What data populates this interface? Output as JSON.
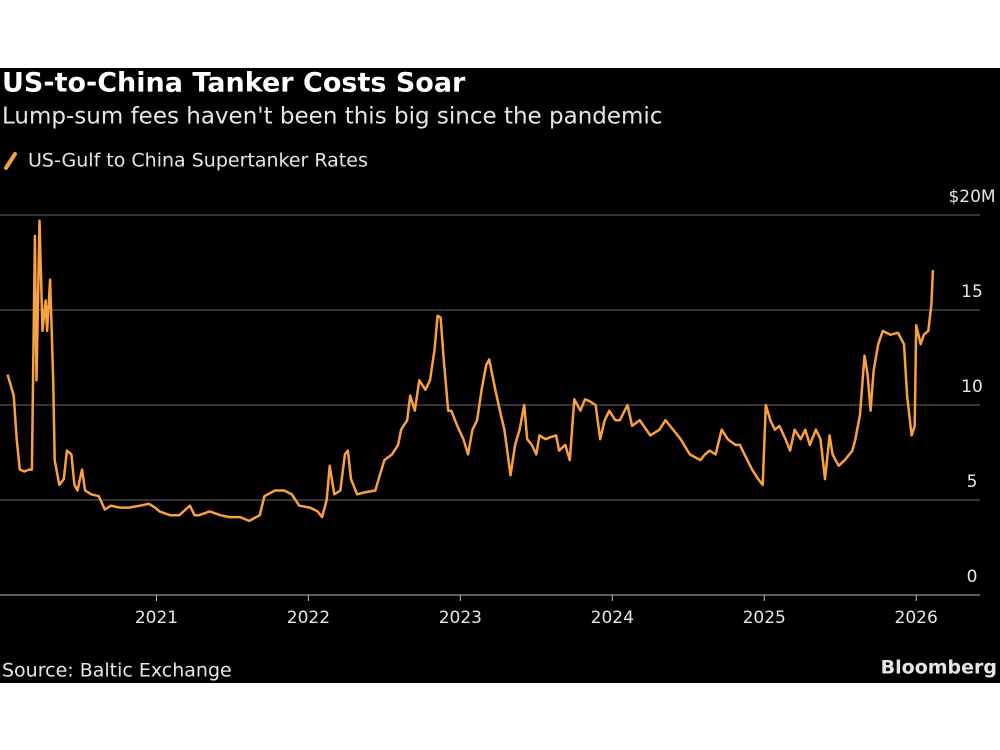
{
  "chart_data": {
    "type": "line",
    "title": "US-to-China Tanker Costs Soar",
    "subtitle": "Lump-sum fees haven't been this big since the pandemic",
    "source": "Source: Baltic Exchange",
    "brand": "Bloomberg",
    "x": [
      2020.02,
      2020.06,
      2020.08,
      2020.1,
      2020.13,
      2020.16,
      2020.18,
      2020.2,
      2020.21,
      2020.23,
      2020.25,
      2020.27,
      2020.28,
      2020.3,
      2020.32,
      2020.33,
      2020.36,
      2020.39,
      2020.41,
      2020.44,
      2020.46,
      2020.48,
      2020.51,
      2020.53,
      2020.57,
      2020.62,
      2020.66,
      2020.7,
      2020.76,
      2020.82,
      2020.89,
      2020.95,
      2020.99,
      2021.02,
      2021.09,
      2021.15,
      2021.22,
      2021.25,
      2021.28,
      2021.35,
      2021.42,
      2021.48,
      2021.55,
      2021.61,
      2021.68,
      2021.71,
      2021.78,
      2021.84,
      2021.89,
      2021.94,
      2022.01,
      2022.06,
      2022.09,
      2022.12,
      2022.14,
      2022.17,
      2022.21,
      2022.24,
      2022.26,
      2022.28,
      2022.32,
      2022.37,
      2022.44,
      2022.47,
      2022.5,
      2022.55,
      2022.59,
      2022.61,
      2022.65,
      2022.67,
      2022.7,
      2022.73,
      2022.77,
      2022.8,
      2022.83,
      2022.85,
      2022.87,
      2022.89,
      2022.92,
      2022.94,
      2022.98,
      2023.02,
      2023.05,
      2023.08,
      2023.11,
      2023.14,
      2023.17,
      2023.19,
      2023.23,
      2023.26,
      2023.29,
      2023.33,
      2023.36,
      2023.39,
      2023.42,
      2023.44,
      2023.47,
      2023.5,
      2023.52,
      2023.56,
      2023.59,
      2023.63,
      2023.65,
      2023.69,
      2023.72,
      2023.75,
      2023.79,
      2023.82,
      2023.85,
      2023.89,
      2023.92,
      2023.95,
      2023.98,
      2024.02,
      2024.05,
      2024.1,
      2024.13,
      2024.18,
      2024.25,
      2024.31,
      2024.35,
      2024.38,
      2024.45,
      2024.51,
      2024.58,
      2024.61,
      2024.64,
      2024.68,
      2024.72,
      2024.76,
      2024.81,
      2024.84,
      2024.87,
      2024.92,
      2024.96,
      2024.99,
      2025.01,
      2025.04,
      2025.07,
      2025.1,
      2025.14,
      2025.17,
      2025.2,
      2025.24,
      2025.27,
      2025.3,
      2025.34,
      2025.37,
      2025.4,
      2025.43,
      2025.45,
      2025.49,
      2025.53,
      2025.58,
      2025.6,
      2025.63,
      2025.66,
      2025.68,
      2025.7,
      2025.72,
      2025.75,
      2025.78,
      2025.83,
      2025.88,
      2025.92,
      2025.94,
      2025.97,
      2025.99,
      2026.0,
      2026.03,
      2026.05,
      2026.08,
      2026.1,
      2026.11
    ],
    "series": [
      {
        "name": "US-Gulf to China Supertanker Rates",
        "color": "#f9a03f",
        "values": [
          11.6,
          10.5,
          8.2,
          6.6,
          6.5,
          6.6,
          6.6,
          18.9,
          11.3,
          19.7,
          13.9,
          15.5,
          13.9,
          16.6,
          11.3,
          7.1,
          5.8,
          6.1,
          7.6,
          7.4,
          5.8,
          5.5,
          6.6,
          5.5,
          5.3,
          5.2,
          4.5,
          4.7,
          4.6,
          4.6,
          4.7,
          4.8,
          4.6,
          4.4,
          4.2,
          4.2,
          4.7,
          4.2,
          4.2,
          4.4,
          4.2,
          4.1,
          4.1,
          3.9,
          4.2,
          5.2,
          5.5,
          5.5,
          5.3,
          4.7,
          4.6,
          4.4,
          4.1,
          5.0,
          6.8,
          5.3,
          5.5,
          7.4,
          7.6,
          6.1,
          5.3,
          5.4,
          5.5,
          6.3,
          7.1,
          7.4,
          7.9,
          8.7,
          9.2,
          10.5,
          9.7,
          11.3,
          10.8,
          11.3,
          12.9,
          14.7,
          14.6,
          12.4,
          9.7,
          9.7,
          8.9,
          8.2,
          7.4,
          8.7,
          9.2,
          10.8,
          12.1,
          12.4,
          10.8,
          9.7,
          8.7,
          6.3,
          7.9,
          8.7,
          10.0,
          8.2,
          7.9,
          7.4,
          8.4,
          8.2,
          8.3,
          8.4,
          7.6,
          7.9,
          7.1,
          10.3,
          9.7,
          10.3,
          10.2,
          10.0,
          8.2,
          9.2,
          9.7,
          9.2,
          9.2,
          10.0,
          8.9,
          9.2,
          8.4,
          8.7,
          9.2,
          8.9,
          8.2,
          7.4,
          7.1,
          7.4,
          7.6,
          7.4,
          8.7,
          8.2,
          7.9,
          7.9,
          7.4,
          6.6,
          6.1,
          5.8,
          10.0,
          9.2,
          8.7,
          8.9,
          8.2,
          7.6,
          8.7,
          8.2,
          8.7,
          7.9,
          8.7,
          8.2,
          6.1,
          8.4,
          7.4,
          6.8,
          7.1,
          7.6,
          8.2,
          9.5,
          12.6,
          11.6,
          9.7,
          11.8,
          13.2,
          13.9,
          13.7,
          13.8,
          13.2,
          10.5,
          8.4,
          8.9,
          14.2,
          13.2,
          13.7,
          13.9,
          15.3,
          17.1
        ]
      }
    ],
    "xlim": [
      2019.97,
      2026.42
    ],
    "xticks": [
      2021,
      2022,
      2023,
      2024,
      2025,
      2026
    ],
    "ylim": [
      0,
      20
    ],
    "yticks": [
      0,
      5,
      10,
      15,
      {
        "value": 20,
        "label": "$20M"
      }
    ],
    "grid": true
  }
}
